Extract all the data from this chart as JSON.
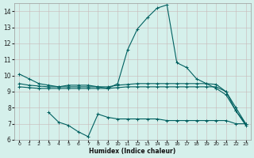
{
  "xlabel": "Humidex (Indice chaleur)",
  "xlim": [
    -0.5,
    23.5
  ],
  "ylim": [
    6,
    14.5
  ],
  "yticks": [
    6,
    7,
    8,
    9,
    10,
    11,
    12,
    13,
    14
  ],
  "xticks": [
    0,
    1,
    2,
    3,
    4,
    5,
    6,
    7,
    8,
    9,
    10,
    11,
    12,
    13,
    14,
    15,
    16,
    17,
    18,
    19,
    20,
    21,
    22,
    23
  ],
  "bg_color": "#d5f0eb",
  "line_color": "#006060",
  "grid_color": "#c8b8b8",
  "line1_x": [
    0,
    1,
    2,
    3,
    4,
    5,
    6,
    7,
    8,
    9,
    10,
    11,
    12,
    13,
    14,
    15,
    16,
    17,
    18,
    19,
    20,
    21,
    22,
    23
  ],
  "line1_y": [
    10.1,
    9.8,
    9.5,
    9.4,
    9.3,
    9.4,
    9.4,
    9.4,
    9.3,
    9.2,
    9.5,
    11.6,
    12.9,
    13.6,
    14.2,
    14.4,
    10.8,
    10.5,
    9.8,
    9.5,
    9.2,
    8.8,
    7.8,
    7.0
  ],
  "line2_x": [
    0,
    1,
    2,
    3,
    4,
    5,
    6,
    7,
    8,
    9,
    10,
    11,
    12,
    13,
    14,
    15,
    16,
    17,
    18,
    19,
    20,
    21,
    22,
    23
  ],
  "line2_y": [
    9.5,
    9.4,
    9.35,
    9.3,
    9.3,
    9.3,
    9.3,
    9.3,
    9.3,
    9.3,
    9.4,
    9.45,
    9.5,
    9.5,
    9.5,
    9.5,
    9.5,
    9.5,
    9.5,
    9.5,
    9.45,
    9.0,
    8.0,
    7.0
  ],
  "line3_x": [
    0,
    1,
    2,
    3,
    4,
    5,
    6,
    7,
    8,
    9,
    10,
    11,
    12,
    13,
    14,
    15,
    16,
    17,
    18,
    19,
    20,
    21,
    22,
    23
  ],
  "line3_y": [
    9.3,
    9.25,
    9.2,
    9.2,
    9.2,
    9.2,
    9.2,
    9.2,
    9.2,
    9.2,
    9.25,
    9.3,
    9.3,
    9.3,
    9.3,
    9.3,
    9.3,
    9.3,
    9.3,
    9.3,
    9.3,
    9.0,
    7.8,
    6.9
  ],
  "line4_x": [
    3,
    4,
    5,
    6,
    7,
    8,
    9,
    10,
    11,
    12,
    13,
    14,
    15,
    16,
    17,
    18,
    19,
    20,
    21,
    22,
    23
  ],
  "line4_y": [
    7.7,
    7.1,
    6.9,
    6.5,
    6.2,
    7.6,
    7.4,
    7.3,
    7.3,
    7.3,
    7.3,
    7.3,
    7.2,
    7.2,
    7.2,
    7.2,
    7.2,
    7.2,
    7.2,
    7.0,
    7.0
  ]
}
